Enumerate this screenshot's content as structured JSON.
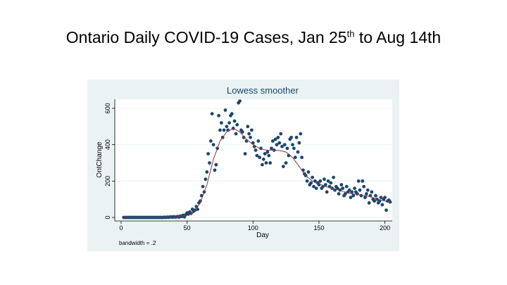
{
  "slide": {
    "title_pre": "Ontario Daily COVID-19 Cases, Jan 25",
    "title_sup": "th",
    "title_post": " to Aug 14th"
  },
  "colors": {
    "plot_bg": "#eaf2f3",
    "marker": "#1a476f",
    "smoother": "#90353b",
    "title": "#1a476f"
  },
  "chart_data": {
    "type": "scatter",
    "title": "Lowess smoother",
    "xlabel": "Day",
    "ylabel": "OntChange",
    "note": "bandwidth = .2",
    "xlim": [
      0,
      205
    ],
    "ylim": [
      0,
      650
    ],
    "xticks": [
      0,
      50,
      100,
      150,
      200
    ],
    "yticks": [
      0,
      200,
      400,
      600
    ],
    "grid": true,
    "points": [
      [
        2,
        0
      ],
      [
        3,
        0
      ],
      [
        4,
        0
      ],
      [
        5,
        0
      ],
      [
        6,
        0
      ],
      [
        7,
        0
      ],
      [
        8,
        0
      ],
      [
        9,
        0
      ],
      [
        10,
        0
      ],
      [
        11,
        0
      ],
      [
        12,
        0
      ],
      [
        13,
        0
      ],
      [
        14,
        0
      ],
      [
        15,
        0
      ],
      [
        16,
        0
      ],
      [
        17,
        0
      ],
      [
        18,
        0
      ],
      [
        19,
        0
      ],
      [
        20,
        0
      ],
      [
        21,
        0
      ],
      [
        22,
        0
      ],
      [
        23,
        0
      ],
      [
        24,
        0
      ],
      [
        25,
        0
      ],
      [
        26,
        0
      ],
      [
        27,
        0
      ],
      [
        28,
        0
      ],
      [
        29,
        0
      ],
      [
        30,
        0
      ],
      [
        31,
        0
      ],
      [
        32,
        0
      ],
      [
        33,
        1
      ],
      [
        34,
        0
      ],
      [
        35,
        2
      ],
      [
        36,
        1
      ],
      [
        37,
        2
      ],
      [
        38,
        3
      ],
      [
        39,
        1
      ],
      [
        40,
        4
      ],
      [
        41,
        2
      ],
      [
        42,
        3
      ],
      [
        43,
        5
      ],
      [
        44,
        2
      ],
      [
        45,
        8
      ],
      [
        46,
        5
      ],
      [
        47,
        12
      ],
      [
        48,
        3
      ],
      [
        49,
        15
      ],
      [
        50,
        25
      ],
      [
        51,
        18
      ],
      [
        52,
        30
      ],
      [
        53,
        22
      ],
      [
        54,
        45
      ],
      [
        55,
        35
      ],
      [
        56,
        40
      ],
      [
        57,
        60
      ],
      [
        58,
        45
      ],
      [
        59,
        80
      ],
      [
        60,
        90
      ],
      [
        61,
        120
      ],
      [
        62,
        170
      ],
      [
        63,
        140
      ],
      [
        64,
        210
      ],
      [
        65,
        250
      ],
      [
        66,
        350
      ],
      [
        67,
        300
      ],
      [
        68,
        420
      ],
      [
        69,
        570
      ],
      [
        70,
        400
      ],
      [
        71,
        260
      ],
      [
        72,
        290
      ],
      [
        73,
        380
      ],
      [
        74,
        560
      ],
      [
        75,
        480
      ],
      [
        76,
        520
      ],
      [
        77,
        440
      ],
      [
        78,
        480
      ],
      [
        79,
        590
      ],
      [
        80,
        500
      ],
      [
        81,
        480
      ],
      [
        82,
        520
      ],
      [
        83,
        560
      ],
      [
        84,
        570
      ],
      [
        85,
        490
      ],
      [
        86,
        530
      ],
      [
        87,
        460
      ],
      [
        88,
        510
      ],
      [
        89,
        630
      ],
      [
        90,
        640
      ],
      [
        91,
        480
      ],
      [
        92,
        470
      ],
      [
        93,
        440
      ],
      [
        94,
        350
      ],
      [
        95,
        420
      ],
      [
        96,
        500
      ],
      [
        97,
        460
      ],
      [
        98,
        440
      ],
      [
        99,
        480
      ],
      [
        100,
        410
      ],
      [
        101,
        390
      ],
      [
        102,
        370
      ],
      [
        103,
        340
      ],
      [
        104,
        420
      ],
      [
        105,
        330
      ],
      [
        106,
        380
      ],
      [
        107,
        290
      ],
      [
        108,
        320
      ],
      [
        109,
        350
      ],
      [
        110,
        300
      ],
      [
        111,
        360
      ],
      [
        112,
        340
      ],
      [
        113,
        300
      ],
      [
        114,
        380
      ],
      [
        115,
        420
      ],
      [
        116,
        370
      ],
      [
        117,
        430
      ],
      [
        118,
        400
      ],
      [
        119,
        440
      ],
      [
        120,
        410
      ],
      [
        121,
        460
      ],
      [
        122,
        390
      ],
      [
        123,
        280
      ],
      [
        124,
        400
      ],
      [
        125,
        300
      ],
      [
        126,
        380
      ],
      [
        127,
        340
      ],
      [
        128,
        430
      ],
      [
        129,
        440
      ],
      [
        130,
        400
      ],
      [
        131,
        380
      ],
      [
        132,
        330
      ],
      [
        133,
        440
      ],
      [
        134,
        360
      ],
      [
        135,
        410
      ],
      [
        136,
        460
      ],
      [
        137,
        330
      ],
      [
        138,
        260
      ],
      [
        139,
        240
      ],
      [
        140,
        230
      ],
      [
        141,
        200
      ],
      [
        142,
        250
      ],
      [
        143,
        180
      ],
      [
        144,
        190
      ],
      [
        145,
        220
      ],
      [
        146,
        170
      ],
      [
        147,
        200
      ],
      [
        148,
        160
      ],
      [
        149,
        190
      ],
      [
        150,
        180
      ],
      [
        151,
        200
      ],
      [
        152,
        160
      ],
      [
        153,
        170
      ],
      [
        154,
        210
      ],
      [
        155,
        180
      ],
      [
        156,
        140
      ],
      [
        157,
        200
      ],
      [
        158,
        170
      ],
      [
        159,
        190
      ],
      [
        160,
        160
      ],
      [
        161,
        220
      ],
      [
        162,
        150
      ],
      [
        163,
        170
      ],
      [
        164,
        160
      ],
      [
        165,
        130
      ],
      [
        166,
        150
      ],
      [
        167,
        180
      ],
      [
        168,
        160
      ],
      [
        169,
        120
      ],
      [
        170,
        130
      ],
      [
        171,
        170
      ],
      [
        172,
        140
      ],
      [
        173,
        150
      ],
      [
        174,
        110
      ],
      [
        175,
        140
      ],
      [
        176,
        120
      ],
      [
        177,
        160
      ],
      [
        178,
        140
      ],
      [
        179,
        130
      ],
      [
        180,
        200
      ],
      [
        181,
        150
      ],
      [
        182,
        120
      ],
      [
        183,
        200
      ],
      [
        184,
        170
      ],
      [
        185,
        110
      ],
      [
        186,
        130
      ],
      [
        187,
        150
      ],
      [
        188,
        80
      ],
      [
        189,
        120
      ],
      [
        190,
        140
      ],
      [
        191,
        100
      ],
      [
        192,
        90
      ],
      [
        193,
        120
      ],
      [
        194,
        100
      ],
      [
        195,
        80
      ],
      [
        196,
        90
      ],
      [
        197,
        110
      ],
      [
        198,
        70
      ],
      [
        199,
        100
      ],
      [
        200,
        110
      ],
      [
        201,
        40
      ],
      [
        202,
        90
      ],
      [
        203,
        95
      ],
      [
        204,
        85
      ]
    ],
    "smoother": [
      [
        2,
        0
      ],
      [
        30,
        0
      ],
      [
        40,
        2
      ],
      [
        50,
        12
      ],
      [
        55,
        25
      ],
      [
        60,
        80
      ],
      [
        65,
        180
      ],
      [
        70,
        320
      ],
      [
        75,
        420
      ],
      [
        80,
        470
      ],
      [
        85,
        490
      ],
      [
        90,
        470
      ],
      [
        95,
        430
      ],
      [
        100,
        400
      ],
      [
        105,
        380
      ],
      [
        110,
        370
      ],
      [
        115,
        370
      ],
      [
        120,
        368
      ],
      [
        125,
        360
      ],
      [
        130,
        330
      ],
      [
        135,
        280
      ],
      [
        140,
        230
      ],
      [
        145,
        200
      ],
      [
        150,
        185
      ],
      [
        155,
        170
      ],
      [
        160,
        160
      ],
      [
        165,
        150
      ],
      [
        170,
        140
      ],
      [
        175,
        130
      ],
      [
        180,
        125
      ],
      [
        185,
        120
      ],
      [
        190,
        112
      ],
      [
        195,
        100
      ],
      [
        200,
        90
      ],
      [
        204,
        85
      ]
    ]
  }
}
